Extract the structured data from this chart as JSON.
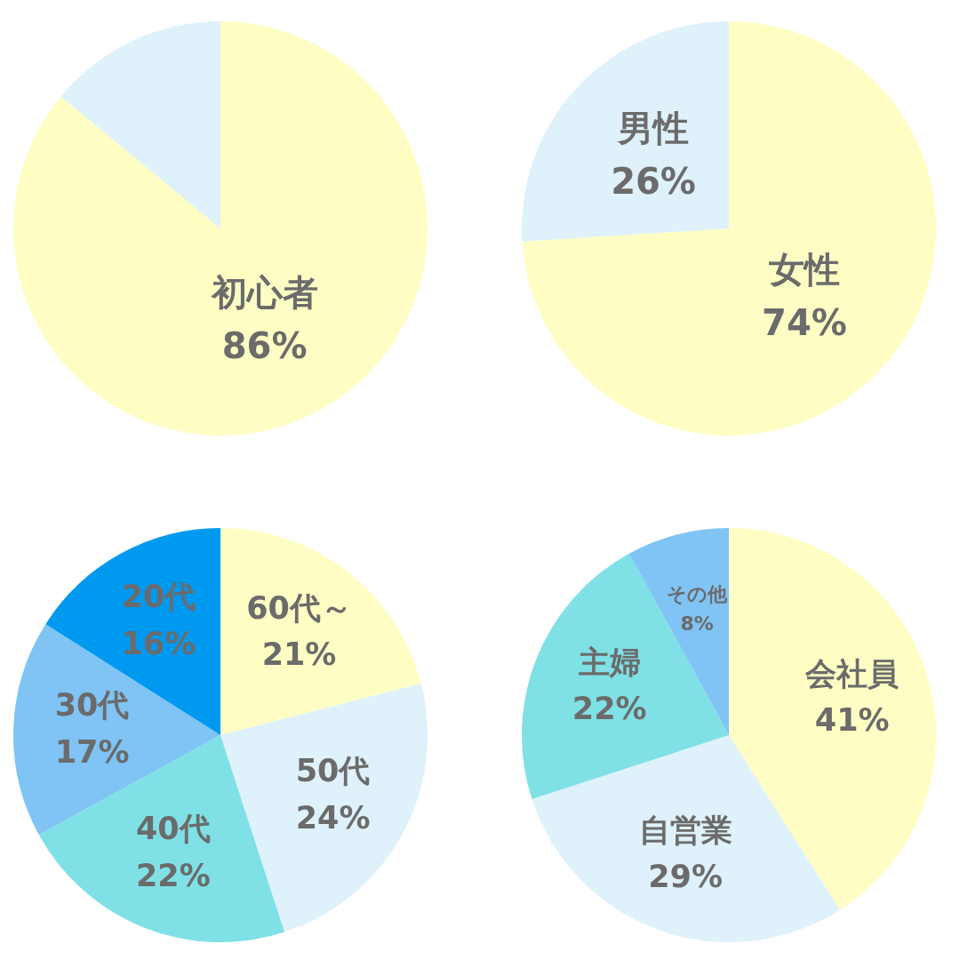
{
  "chart_data": [
    {
      "type": "pie",
      "categories": [
        "初心者",
        null
      ],
      "values": [
        86,
        14
      ],
      "colors": [
        "#fefec4",
        "#dff1fa"
      ],
      "value_labels": [
        "86%",
        null
      ]
    },
    {
      "type": "pie",
      "categories": [
        "女性",
        "男性"
      ],
      "values": [
        74,
        26
      ],
      "colors": [
        "#fefec4",
        "#dff1fa"
      ],
      "value_labels": [
        "74%",
        "26%"
      ]
    },
    {
      "type": "pie",
      "categories": [
        "60代～",
        "50代",
        "40代",
        "30代",
        "20代"
      ],
      "values": [
        21,
        24,
        22,
        17,
        16
      ],
      "colors": [
        "#fefec4",
        "#dff1fa",
        "#7fe1e6",
        "#7fc4f4",
        "#0099f0"
      ],
      "value_labels": [
        "21%",
        "24%",
        "22%",
        "17%",
        "16%"
      ]
    },
    {
      "type": "pie",
      "categories": [
        "会社員",
        "自営業",
        "主婦",
        "その他"
      ],
      "values": [
        41,
        29,
        22,
        8
      ],
      "colors": [
        "#fefec4",
        "#dff1fa",
        "#7fe1e6",
        "#7fc4f4"
      ],
      "value_labels": [
        "41%",
        "29%",
        "22%",
        "8%"
      ]
    }
  ]
}
